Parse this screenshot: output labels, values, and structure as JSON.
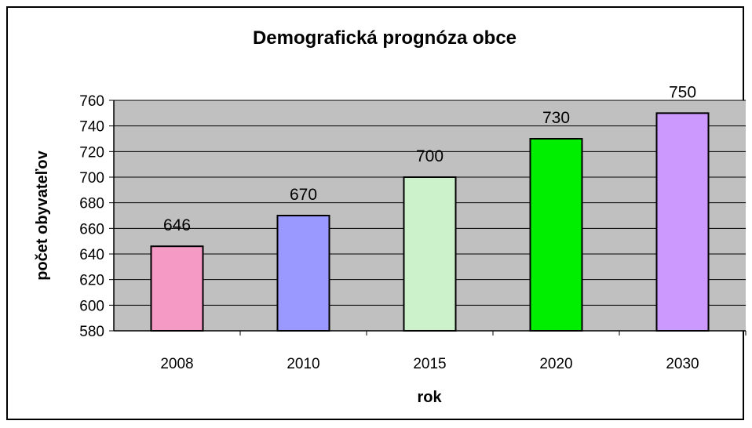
{
  "chart_data": {
    "type": "bar",
    "title": "Demografická prognóza obce",
    "xlabel": "rok",
    "ylabel": "počet obyvateľov",
    "categories": [
      "2008",
      "2010",
      "2015",
      "2020",
      "2030"
    ],
    "values": [
      646,
      670,
      700,
      730,
      750
    ],
    "data_labels": [
      "646",
      "670",
      "700",
      "730",
      "750"
    ],
    "bar_colors": [
      "#f59ac4",
      "#9999ff",
      "#ccf2cc",
      "#00ee00",
      "#cc99ff"
    ],
    "ylim": [
      580,
      760
    ],
    "yticks": [
      580,
      600,
      620,
      640,
      660,
      680,
      700,
      720,
      740,
      760
    ],
    "plot_background": "#c0c0c0",
    "grid": true,
    "legend": "none"
  }
}
